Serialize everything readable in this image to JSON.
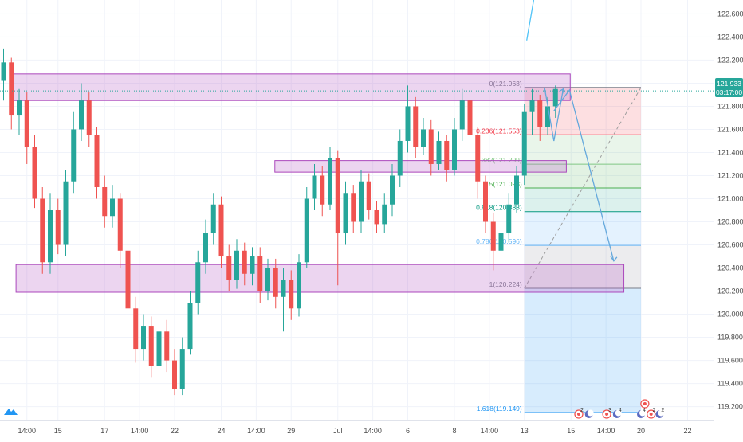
{
  "chart_data": {
    "type": "candlestick",
    "y_axis": {
      "labels": [
        "122.600",
        "122.400",
        "122.200",
        "122.000",
        "121.800",
        "121.600",
        "121.400",
        "121.200",
        "121.000",
        "120.800",
        "120.600",
        "120.400",
        "120.200",
        "120.000",
        "119.800",
        "119.600",
        "119.400",
        "119.200"
      ],
      "range": [
        119.08,
        122.72
      ],
      "current_price": "121.933",
      "countdown": "03:17:00"
    },
    "x_axis": {
      "labels": [
        {
          "text": "14:00",
          "i": 3
        },
        {
          "text": "15",
          "i": 7
        },
        {
          "text": "17",
          "i": 13
        },
        {
          "text": "14:00",
          "i": 17.5
        },
        {
          "text": "22",
          "i": 22
        },
        {
          "text": "24",
          "i": 28
        },
        {
          "text": "14:00",
          "i": 32.5
        },
        {
          "text": "29",
          "i": 37
        },
        {
          "text": "Jul",
          "i": 43
        },
        {
          "text": "14:00",
          "i": 47.5
        },
        {
          "text": "6",
          "i": 52
        },
        {
          "text": "8",
          "i": 58
        },
        {
          "text": "14:00",
          "i": 62.5
        },
        {
          "text": "13",
          "i": 67
        },
        {
          "text": "15",
          "i": 73
        },
        {
          "text": "14:00",
          "i": 77.5
        },
        {
          "text": "20",
          "i": 82
        },
        {
          "text": "22",
          "i": 88
        }
      ]
    },
    "candles": [
      [
        122.02,
        122.18,
        121.85,
        122.3
      ],
      [
        122.18,
        121.72,
        121.6,
        122.22
      ],
      [
        121.72,
        121.85,
        121.55,
        121.95
      ],
      [
        121.85,
        121.45,
        121.3,
        121.92
      ],
      [
        121.45,
        121.0,
        120.92,
        121.55
      ],
      [
        121.0,
        120.45,
        120.35,
        121.1
      ],
      [
        120.45,
        120.9,
        120.35,
        121.05
      ],
      [
        120.9,
        120.6,
        120.52,
        121.0
      ],
      [
        120.6,
        121.15,
        120.5,
        121.25
      ],
      [
        121.15,
        121.6,
        121.05,
        121.75
      ],
      [
        121.6,
        121.85,
        121.5,
        122.0
      ],
      [
        121.85,
        121.55,
        121.45,
        121.92
      ],
      [
        121.55,
        121.1,
        121.0,
        121.62
      ],
      [
        121.1,
        120.85,
        120.75,
        121.2
      ],
      [
        120.85,
        121.0,
        120.75,
        121.12
      ],
      [
        121.0,
        120.55,
        120.4,
        121.05
      ],
      [
        120.55,
        120.05,
        119.95,
        120.62
      ],
      [
        120.05,
        119.7,
        119.58,
        120.15
      ],
      [
        119.7,
        119.9,
        119.6,
        120.0
      ],
      [
        119.9,
        119.55,
        119.45,
        119.98
      ],
      [
        119.55,
        119.85,
        119.45,
        119.95
      ],
      [
        119.85,
        119.6,
        119.5,
        119.95
      ],
      [
        119.6,
        119.35,
        119.3,
        119.7
      ],
      [
        119.35,
        119.7,
        119.3,
        119.8
      ],
      [
        119.7,
        120.1,
        119.65,
        120.2
      ],
      [
        120.1,
        120.45,
        120.0,
        120.55
      ],
      [
        120.45,
        120.7,
        120.35,
        120.82
      ],
      [
        120.7,
        120.95,
        120.6,
        121.05
      ],
      [
        120.95,
        120.5,
        120.4,
        121.02
      ],
      [
        120.5,
        120.3,
        120.2,
        120.6
      ],
      [
        120.3,
        120.55,
        120.22,
        120.65
      ],
      [
        120.55,
        120.35,
        120.25,
        120.62
      ],
      [
        120.35,
        120.5,
        120.25,
        120.58
      ],
      [
        120.5,
        120.2,
        120.1,
        120.58
      ],
      [
        120.2,
        120.4,
        120.12,
        120.48
      ],
      [
        120.4,
        120.15,
        120.05,
        120.48
      ],
      [
        120.15,
        120.3,
        119.85,
        120.4
      ],
      [
        120.3,
        120.05,
        119.95,
        120.38
      ],
      [
        120.05,
        120.45,
        119.98,
        120.52
      ],
      [
        120.45,
        121.0,
        120.4,
        121.1
      ],
      [
        121.0,
        121.2,
        120.9,
        121.3
      ],
      [
        121.2,
        120.95,
        120.85,
        121.28
      ],
      [
        120.95,
        121.35,
        120.9,
        121.45
      ],
      [
        121.35,
        120.7,
        120.25,
        121.42
      ],
      [
        120.7,
        121.05,
        120.6,
        121.15
      ],
      [
        121.05,
        120.8,
        120.7,
        121.12
      ],
      [
        120.8,
        121.15,
        120.7,
        121.25
      ],
      [
        121.15,
        120.9,
        120.82,
        121.22
      ],
      [
        120.9,
        120.78,
        120.7,
        120.98
      ],
      [
        120.78,
        120.95,
        120.7,
        121.05
      ],
      [
        120.95,
        121.2,
        120.85,
        121.3
      ],
      [
        121.2,
        121.5,
        121.1,
        121.6
      ],
      [
        121.5,
        121.8,
        121.4,
        121.98
      ],
      [
        121.8,
        121.45,
        121.35,
        121.88
      ],
      [
        121.45,
        121.6,
        121.38,
        121.7
      ],
      [
        121.6,
        121.3,
        121.2,
        121.68
      ],
      [
        121.3,
        121.5,
        121.25,
        121.58
      ],
      [
        121.5,
        121.25,
        121.15,
        121.55
      ],
      [
        121.25,
        121.6,
        121.2,
        121.7
      ],
      [
        121.6,
        121.85,
        121.5,
        121.95
      ],
      [
        121.85,
        121.55,
        121.45,
        121.92
      ],
      [
        121.55,
        121.15,
        121.0,
        121.62
      ],
      [
        121.15,
        120.8,
        120.7,
        121.2
      ],
      [
        120.8,
        120.55,
        120.38,
        120.88
      ],
      [
        120.55,
        120.7,
        120.48,
        120.78
      ],
      [
        120.7,
        120.95,
        120.62,
        121.05
      ],
      [
        120.95,
        121.2,
        120.88,
        121.28
      ],
      [
        121.2,
        121.75,
        121.12,
        121.82
      ],
      [
        121.75,
        121.85,
        121.55,
        121.95
      ],
      [
        121.85,
        121.62,
        121.5,
        121.9
      ],
      [
        121.62,
        121.8,
        121.55,
        121.88
      ],
      [
        121.8,
        121.95,
        121.7,
        121.98
      ]
    ],
    "zones": [
      {
        "name": "top-resistance-zone",
        "i1": 1.3,
        "i2": 72.9,
        "p1": 121.85,
        "p2": 122.08
      },
      {
        "name": "mid-zone",
        "i1": 34.9,
        "i2": 72.4,
        "p1": 121.23,
        "p2": 121.33
      },
      {
        "name": "bottom-support-zone",
        "i1": 1.6,
        "i2": 79.8,
        "p1": 120.19,
        "p2": 120.43
      }
    ],
    "fib_levels": [
      {
        "label": "0(121.963)",
        "ratio": "0",
        "price": 121.963,
        "color": "#787b86",
        "fill": "rgba(242,54,69,0.16)"
      },
      {
        "label": "0.236(121.553)",
        "ratio": "0.236",
        "price": 121.553,
        "color": "#f23645",
        "fill": "rgba(76,175,80,0.12)"
      },
      {
        "label": "0.382(121.299)",
        "ratio": "0.382",
        "price": 121.299,
        "color": "#81c784",
        "fill": "rgba(76,175,80,0.16)"
      },
      {
        "label": "0.5(121.093)",
        "ratio": "0.5",
        "price": 121.093,
        "color": "#4caf50",
        "fill": "rgba(8,153,129,0.14)"
      },
      {
        "label": "0.618(120.888)",
        "ratio": "0.618",
        "price": 120.888,
        "color": "#089981",
        "fill": "rgba(33,150,243,0.12)"
      },
      {
        "label": "0.786(120.596)",
        "ratio": "0.786",
        "price": 120.596,
        "color": "#64b5f6",
        "fill": "rgba(120,123,134,0.14)"
      },
      {
        "label": "1(120.224)",
        "ratio": "1",
        "price": 120.224,
        "color": "#787b86",
        "fill": "rgba(33,150,243,0.18)"
      },
      {
        "label": "1.618(119.149)",
        "ratio": "1.618",
        "price": 119.149,
        "color": "#2196f3",
        "fill": "rgba(242,54,69,0.14)"
      }
    ],
    "drawings": {
      "projection_path": [
        [
          70.8,
          121.76
        ],
        [
          72.8,
          121.94
        ],
        [
          78.5,
          120.46
        ]
      ],
      "zigzag": [
        [
          69.6,
          121.96
        ],
        [
          70.8,
          121.5
        ],
        [
          72.0,
          121.95
        ]
      ],
      "fib_range": {
        "i1": 67.0,
        "i2": 82.0
      },
      "upper_ray": [
        [
          67.3,
          122.37
        ],
        [
          68.2,
          122.72
        ]
      ]
    },
    "colors": {
      "up": "#26a69a",
      "down": "#ef5350",
      "zone_fill": "rgba(186,104,200,0.28)",
      "zone_stroke": "#ab47bc",
      "price_line": "#26a69a",
      "projection": "#64a8dc"
    },
    "events": [
      {
        "icon": "earnings-icon",
        "i": 74.0,
        "count": "2"
      },
      {
        "icon": "moon-icon",
        "i": 75.3,
        "count": ""
      },
      {
        "icon": "earnings-icon",
        "i": 77.6,
        "count": "3"
      },
      {
        "icon": "moon-icon",
        "i": 78.9,
        "count": "4"
      },
      {
        "icon": "moon-icon",
        "i": 82.0,
        "count": "4"
      },
      {
        "icon": "earnings-icon",
        "i": 83.3,
        "count": "2"
      },
      {
        "icon": "moon-icon",
        "i": 84.4,
        "count": "2"
      }
    ],
    "grid": true,
    "legend": "none"
  }
}
